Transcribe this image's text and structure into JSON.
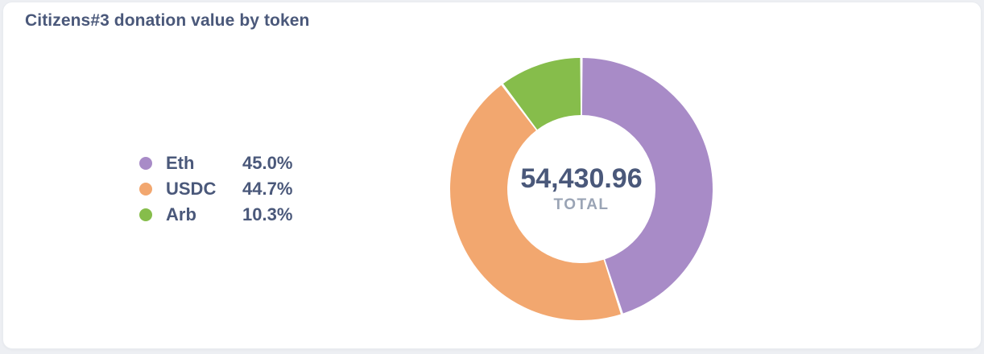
{
  "card": {
    "title": "Citizens#3 donation value by token"
  },
  "center": {
    "total": "54,430.96",
    "label": "TOTAL"
  },
  "chart_data": {
    "type": "pie",
    "subtype": "donut",
    "title": "Citizens#3 donation value by token",
    "center_total": "54,430.96",
    "center_label": "TOTAL",
    "legend_position": "left",
    "start_angle_deg": 0,
    "direction": "clockwise",
    "series": [
      {
        "name": "Eth",
        "percent": 45.0,
        "percent_label": "45.0%",
        "color": "#a88bc7"
      },
      {
        "name": "USDC",
        "percent": 44.7,
        "percent_label": "44.7%",
        "color": "#f2a76f"
      },
      {
        "name": "Arb",
        "percent": 10.3,
        "percent_label": "10.3%",
        "color": "#86bd4b"
      }
    ]
  },
  "theme": {
    "text_color": "#4a587a",
    "muted_text_color": "#9aa4b5",
    "card_background": "#ffffff",
    "page_background": "#edeff3",
    "segment_gap_color": "#ffffff"
  }
}
